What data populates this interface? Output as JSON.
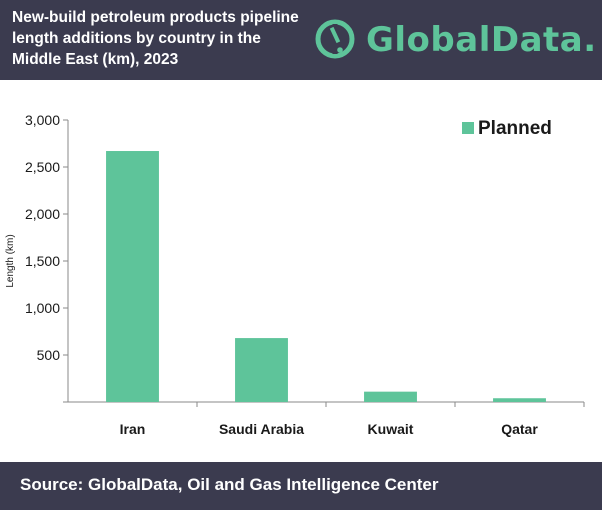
{
  "header": {
    "title_lines": [
      "New-build petroleum products pipeline",
      "length additions by country in the",
      "Middle East (km), 2023"
    ]
  },
  "logo": {
    "text": "GlobalData."
  },
  "footer": {
    "source": "Source:  GlobalData, Oil and Gas Intelligence Center"
  },
  "colors": {
    "header_bg": "#3b3b4f",
    "accent": "#5ec49a",
    "text": "#1a1a1a"
  },
  "chart_data": {
    "type": "bar",
    "categories": [
      "Iran",
      "Saudi Arabia",
      "Kuwait",
      "Qatar"
    ],
    "series": [
      {
        "name": "Planned",
        "values": [
          2670,
          680,
          110,
          40
        ]
      }
    ],
    "xlabel": "",
    "ylabel": "Length (km)",
    "ylim": [
      0,
      3000
    ],
    "yticks": [
      0,
      500,
      1000,
      1500,
      2000,
      2500,
      3000
    ],
    "ytick_labels": [
      "",
      "500",
      "1,000",
      "1,500",
      "2,000",
      "2,500",
      "3,000"
    ],
    "grid": false,
    "legend": "top-right"
  }
}
